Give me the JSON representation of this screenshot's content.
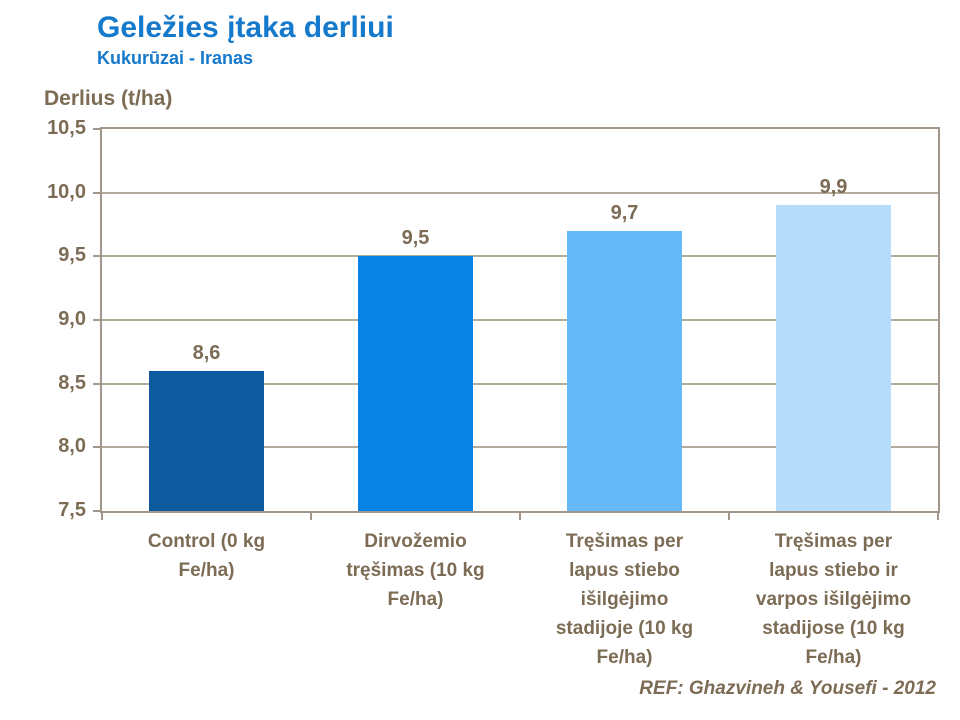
{
  "header": {
    "title": "Geležies įtaka derliui",
    "subtitle": "Kukurūzai - Iranas"
  },
  "footer": {
    "ref": "REF: Ghazvineh & Yousefi - 2012"
  },
  "chart_data": {
    "type": "bar",
    "title": "Geležies įtaka derliui",
    "subtitle": "Kukurūzai - Iranas",
    "xlabel": "",
    "ylabel": "Derlius (t/ha)",
    "categories": [
      "Control (0 kg Fe/ha)",
      "Dirvožemio tręšimas (10 kg Fe/ha)",
      "Tręšimas per lapus stiebo išilgėjimo stadijoje (10 kg Fe/ha)",
      "Tręšimas per lapus stiebo ir varpos išilgėjimo stadijose (10 kg Fe/ha)"
    ],
    "category_lines": [
      [
        "Control (0 kg",
        "Fe/ha)"
      ],
      [
        "Dirvožemio",
        "tręšimas (10 kg",
        "Fe/ha)"
      ],
      [
        "Tręšimas per",
        "lapus stiebo",
        "išilgėjimo",
        "stadijoje (10 kg",
        "Fe/ha)"
      ],
      [
        "Tręšimas per",
        "lapus stiebo ir",
        "varpos išilgėjimo",
        "stadijose (10 kg",
        "Fe/ha)"
      ]
    ],
    "values": [
      8.6,
      9.5,
      9.7,
      9.9
    ],
    "value_labels": [
      "8,6",
      "9,5",
      "9,7",
      "9,9"
    ],
    "ylim": [
      7.5,
      10.5
    ],
    "ytick_step": 0.5,
    "ytick_labels": [
      "7,5",
      "8,0",
      "8,5",
      "9,0",
      "9,5",
      "10,0",
      "10,5"
    ],
    "grid": true,
    "legend": "none",
    "bar_colors": [
      "#0E5A9E",
      "#0883E3",
      "#66BAFA",
      "#B6DEFC"
    ],
    "axis_color": "#A2968A",
    "gridline_color": "#B4AA9C",
    "label_color": "#7D6C55",
    "title_color": "#1579CC"
  }
}
